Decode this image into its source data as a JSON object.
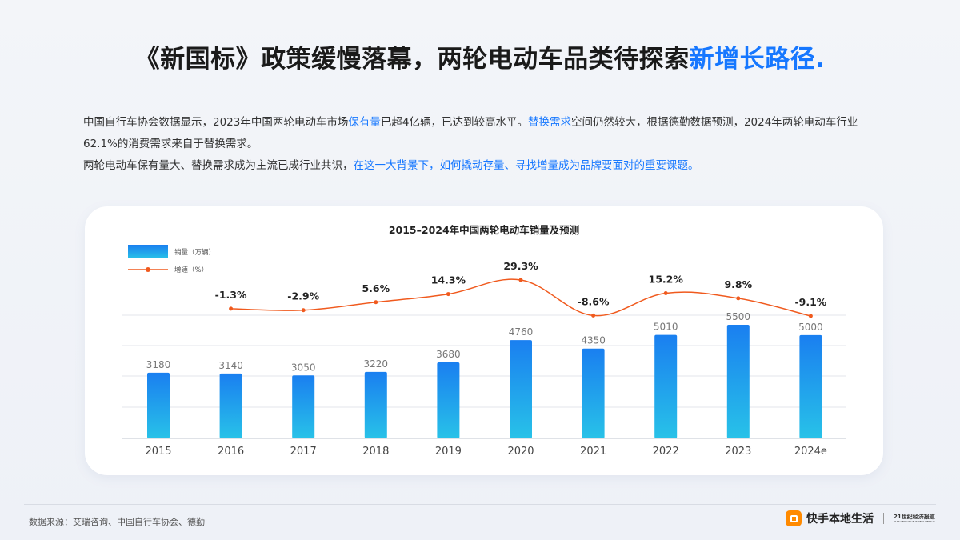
{
  "headline": {
    "main": "《新国标》政策缓慢落幕，两轮电动车品类待探索",
    "highlight": "新增长路径."
  },
  "paragraphs": {
    "p1_a": "中国自行车协会数据显示，2023年中国两轮电动车市场",
    "p1_b": "保有量",
    "p1_c": "已超4亿辆，已达到较高水平。",
    "p1_d": "替换需求",
    "p1_e": "空间仍然较大，根据德勤数据预测，2024年两轮电动车行业62.1%的消费需求来自于替换需求。",
    "p2_a": "两轮电动车保有量大、替换需求成为主流已成行业共识，",
    "p2_b": "在这一大背景下，如何撬动存量、寻找增量成为品牌要面对的重要课题。"
  },
  "chart_data": {
    "type": "bar",
    "title": "2015–2024年中国两轮电动车销量及预测",
    "categories": [
      "2015",
      "2016",
      "2017",
      "2018",
      "2019",
      "2020",
      "2021",
      "2022",
      "2023",
      "2024e"
    ],
    "series": [
      {
        "name": "销量（万辆）",
        "type": "bar",
        "values": [
          3180,
          3140,
          3050,
          3220,
          3680,
          4760,
          4350,
          5010,
          5500,
          5000
        ],
        "labels": [
          "3180",
          "3140",
          "3050",
          "3220",
          "3680",
          "4760",
          "4350",
          "5010",
          "5500",
          "5000"
        ]
      },
      {
        "name": "增速（%）",
        "type": "line",
        "values": [
          null,
          -1.3,
          -2.9,
          5.6,
          14.3,
          29.3,
          -8.6,
          15.2,
          9.8,
          -9.1
        ],
        "labels": [
          "",
          "-1.3%",
          "-2.9%",
          "5.6%",
          "14.3%",
          "29.3%",
          "-8.6%",
          "15.2%",
          "9.8%",
          "-9.1%"
        ]
      }
    ],
    "legend_position": "top-left",
    "grid": true,
    "colors": {
      "bar_top": "#1a7ff0",
      "bar_bottom": "#28c2e8",
      "line": "#f05a1e"
    }
  },
  "footer": {
    "source": "数据来源：艾瑞咨询、中国自行车协会、德勤",
    "brand": "快手本地生活",
    "brand2_line1": "21世纪经济报道",
    "brand2_line2": "21ST CENTURY BUSINESS HERALD"
  }
}
